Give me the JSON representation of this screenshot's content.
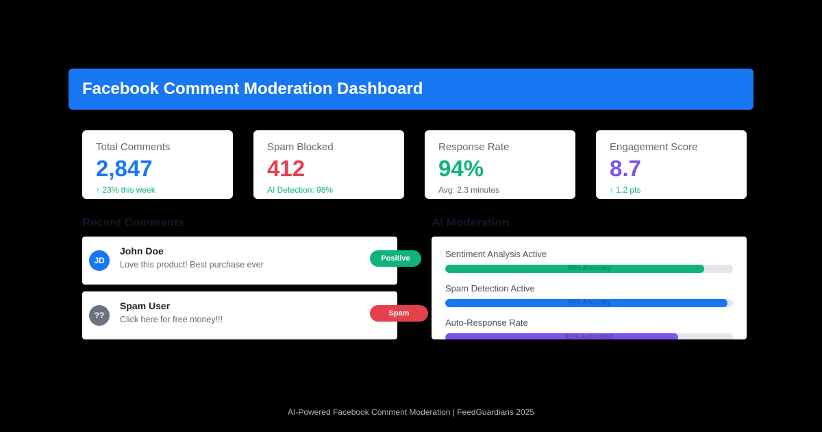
{
  "header": {
    "title": "Facebook Comment Moderation Dashboard"
  },
  "colors": {
    "header_bg": "#1877f2",
    "blue": "#1877f2",
    "red": "#e4404a",
    "green": "#10b37f",
    "purple": "#7b54e8",
    "gray_avatar": "#6b7280"
  },
  "stats": [
    {
      "label": "Total Comments",
      "value": "2,847",
      "note": "↑ 23% this week",
      "value_color": "#1877f2",
      "note_color": "#10b37f"
    },
    {
      "label": "Spam Blocked",
      "value": "412",
      "note": "AI Detection: 98%",
      "value_color": "#e4404a",
      "note_color": "#10b37f"
    },
    {
      "label": "Response Rate",
      "value": "94%",
      "note": "Avg: 2.3 minutes",
      "value_color": "#10b37f",
      "note_color": "#65676b"
    },
    {
      "label": "Engagement Score",
      "value": "8.7",
      "note": "↑ 1.2 pts",
      "value_color": "#7b54e8",
      "note_color": "#10b37f"
    }
  ],
  "recent_comments": {
    "title": "Recent Comments",
    "items": [
      {
        "initials": "JD",
        "name": "John Doe",
        "text": "Love this product! Best purchase ever",
        "badge": "Positive",
        "avatar_color": "#1877f2",
        "badge_color": "#10b37f"
      },
      {
        "initials": "??",
        "name": "Spam User",
        "text": "Click here for free money!!!",
        "badge": "Spam",
        "avatar_color": "#6b7280",
        "badge_color": "#e4404a"
      }
    ]
  },
  "ai_moderation": {
    "title": "AI Moderation",
    "items": [
      {
        "label": "Sentiment Analysis Active",
        "bar_text": "90% Accuracy",
        "level": 0.9,
        "color": "#10b37f"
      },
      {
        "label": "Spam Detection Active",
        "bar_text": "98% Accuracy",
        "level": 0.98,
        "color": "#1877f2"
      },
      {
        "label": "Auto-Response Rate",
        "bar_text": "81% Automated",
        "level": 0.81,
        "color": "#7b54e8"
      }
    ]
  },
  "footer": {
    "text": "AI-Powered Facebook Comment Moderation | FeedGuardians 2025"
  }
}
